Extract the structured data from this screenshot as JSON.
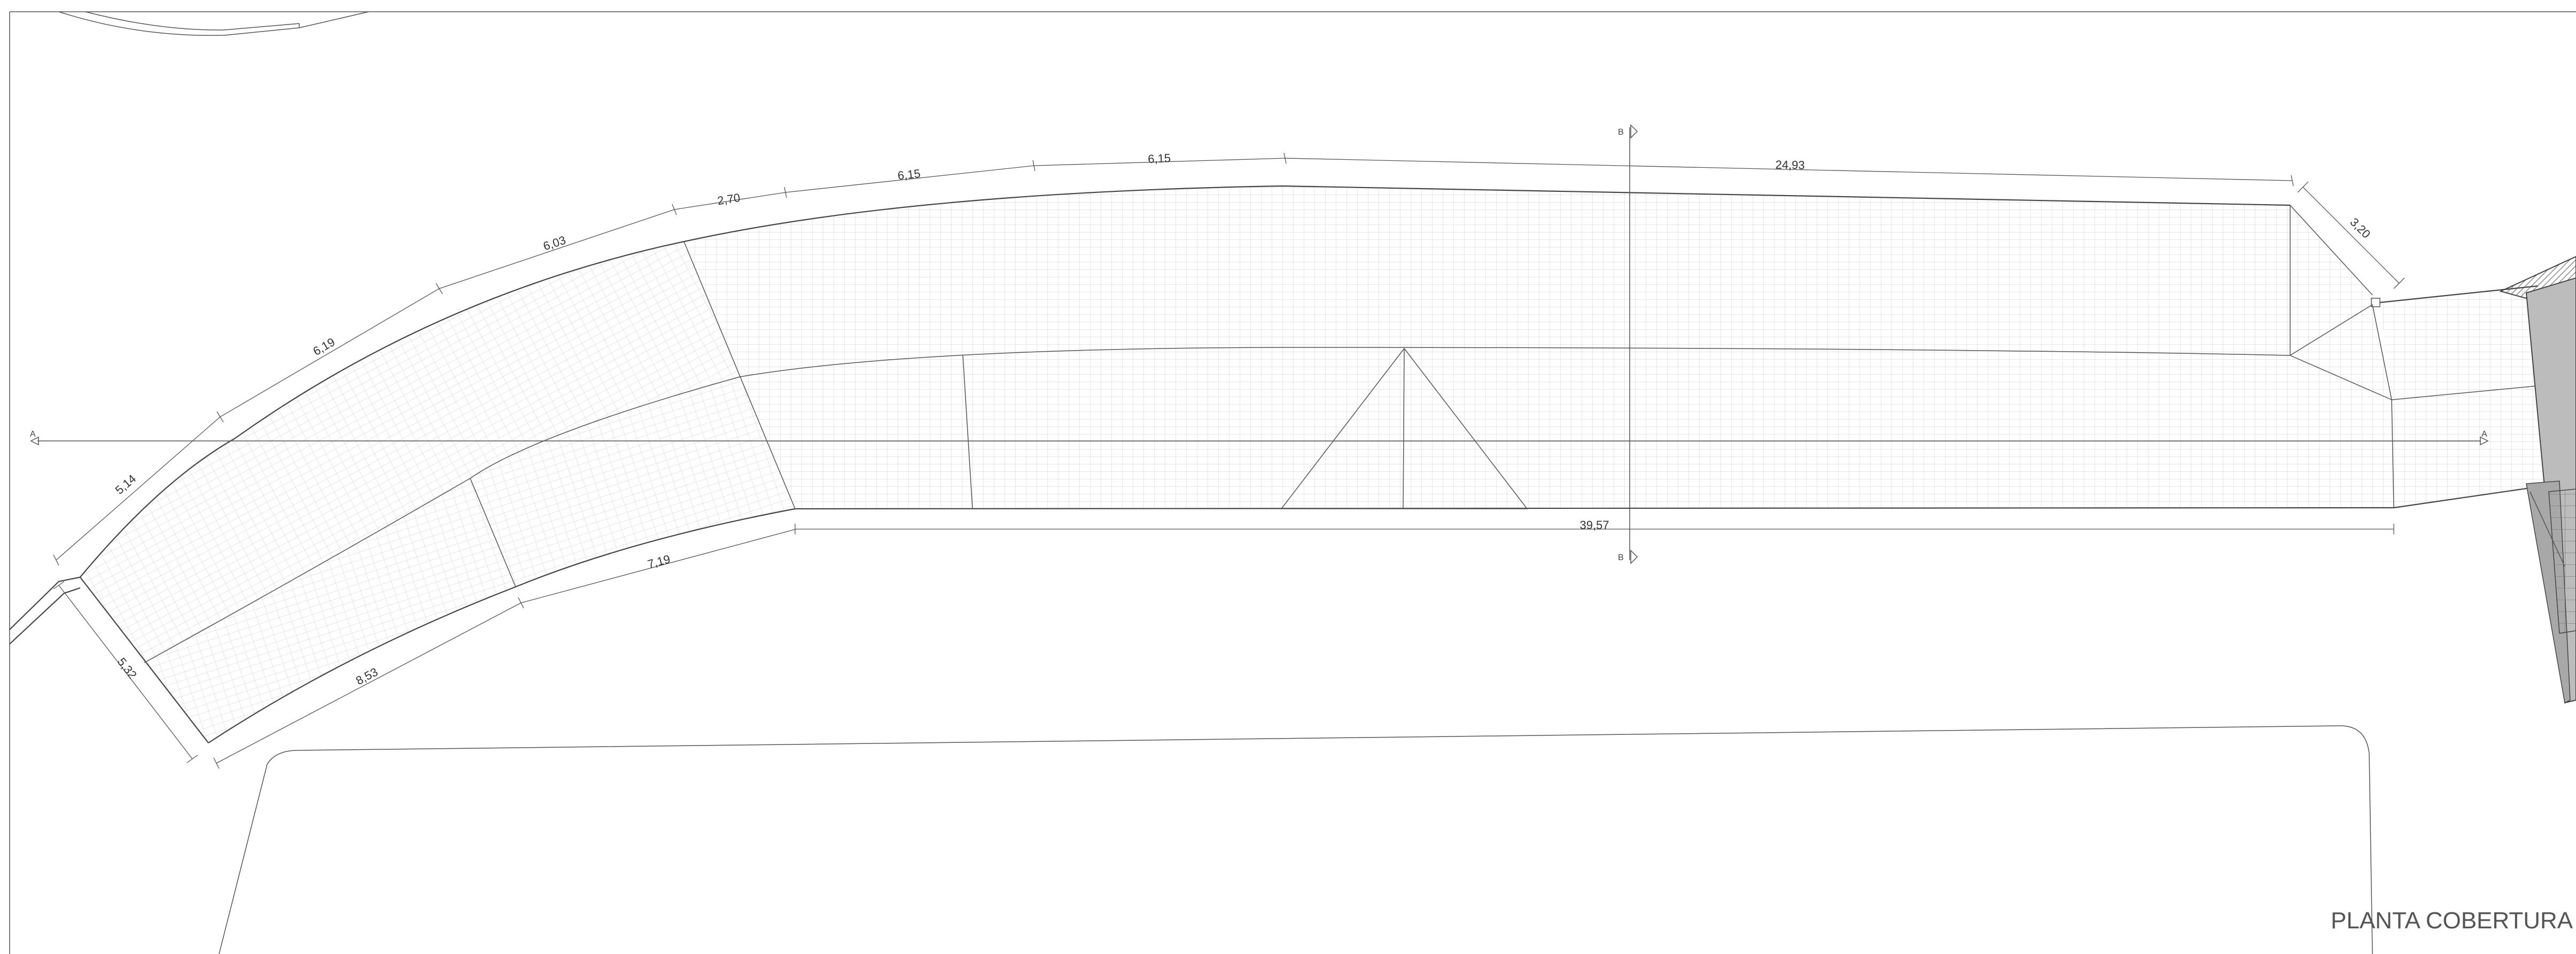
{
  "title": "PLANTA COBERTURA",
  "section_labels": {
    "a_left": "A",
    "a_right": "A",
    "b_top": "B",
    "b_bottom": "B"
  },
  "dimensions": {
    "d_5_14": "5,14",
    "d_6_19": "6,19",
    "d_6_03": "6,03",
    "d_2_70": "2,70",
    "d_6_15a": "6,15",
    "d_6_15b": "6,15",
    "d_24_93": "24,93",
    "d_3_20": "3,20",
    "d_39_57": "39,57",
    "d_7_19": "7,19",
    "d_8_53": "8,53",
    "d_5_32": "5,32"
  },
  "colors": {
    "line": "#555555",
    "hatch": "#cfcfcf",
    "building": "#b0b0b0",
    "frame": "#888888"
  }
}
